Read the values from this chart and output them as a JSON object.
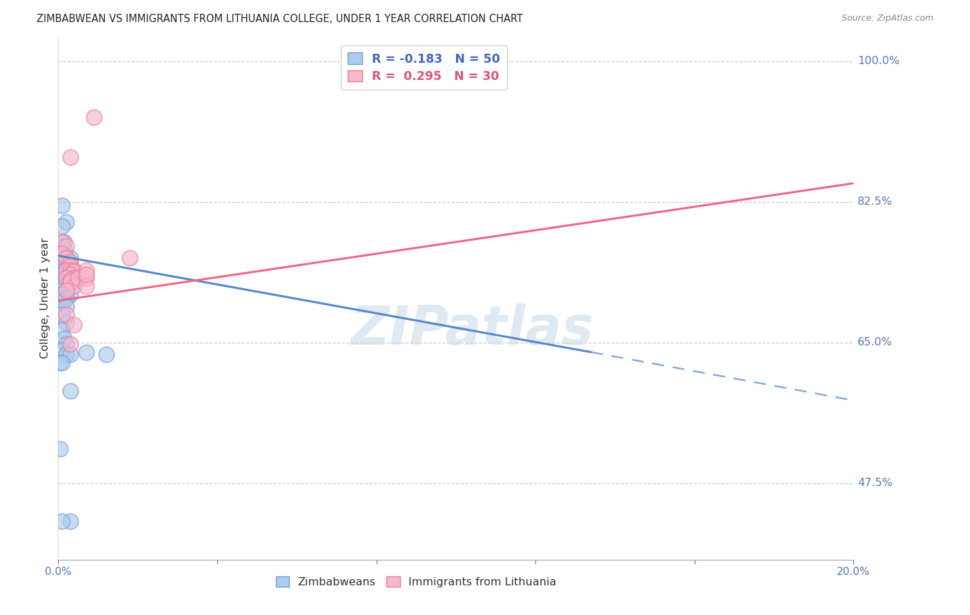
{
  "title": "ZIMBABWEAN VS IMMIGRANTS FROM LITHUANIA COLLEGE, UNDER 1 YEAR CORRELATION CHART",
  "source": "Source: ZipAtlas.com",
  "ylabel": "College, Under 1 year",
  "ytick_labels": [
    "100.0%",
    "82.5%",
    "65.0%",
    "47.5%"
  ],
  "ytick_values": [
    1.0,
    0.825,
    0.65,
    0.475
  ],
  "legend_entries": [
    {
      "label": "R = -0.183   N = 50",
      "color": "#7ab0e0"
    },
    {
      "label": "R =  0.295   N = 30",
      "color": "#f0a0b8"
    }
  ],
  "legend_label_zim": "Zimbabweans",
  "legend_label_lith": "Immigrants from Lithuania",
  "zim_color": "#aaccee",
  "zim_edge": "#7799cc",
  "lith_color": "#f5b8cc",
  "lith_edge": "#ee7799",
  "zim_scatter": [
    [
      0.001,
      0.82
    ],
    [
      0.002,
      0.8
    ],
    [
      0.001,
      0.795
    ],
    [
      0.0015,
      0.775
    ],
    [
      0.001,
      0.77
    ],
    [
      0.0015,
      0.765
    ],
    [
      0.001,
      0.76
    ],
    [
      0.002,
      0.755
    ],
    [
      0.003,
      0.755
    ],
    [
      0.002,
      0.75
    ],
    [
      0.001,
      0.745
    ],
    [
      0.0005,
      0.745
    ],
    [
      0.001,
      0.74
    ],
    [
      0.002,
      0.74
    ],
    [
      0.0015,
      0.74
    ],
    [
      0.003,
      0.74
    ],
    [
      0.0005,
      0.735
    ],
    [
      0.001,
      0.735
    ],
    [
      0.002,
      0.735
    ],
    [
      0.003,
      0.73
    ],
    [
      0.001,
      0.73
    ],
    [
      0.002,
      0.73
    ],
    [
      0.0025,
      0.728
    ],
    [
      0.003,
      0.725
    ],
    [
      0.0015,
      0.725
    ],
    [
      0.002,
      0.722
    ],
    [
      0.001,
      0.72
    ],
    [
      0.0015,
      0.718
    ],
    [
      0.002,
      0.715
    ],
    [
      0.003,
      0.71
    ],
    [
      0.001,
      0.71
    ],
    [
      0.002,
      0.705
    ],
    [
      0.001,
      0.7
    ],
    [
      0.002,
      0.695
    ],
    [
      0.001,
      0.685
    ],
    [
      0.002,
      0.675
    ],
    [
      0.001,
      0.665
    ],
    [
      0.0015,
      0.655
    ],
    [
      0.002,
      0.648
    ],
    [
      0.001,
      0.64
    ],
    [
      0.002,
      0.635
    ],
    [
      0.003,
      0.635
    ],
    [
      0.0005,
      0.625
    ],
    [
      0.001,
      0.625
    ],
    [
      0.012,
      0.635
    ],
    [
      0.007,
      0.638
    ],
    [
      0.0005,
      0.518
    ],
    [
      0.003,
      0.428
    ],
    [
      0.001,
      0.428
    ],
    [
      0.003,
      0.59
    ]
  ],
  "lith_scatter": [
    [
      0.001,
      0.775
    ],
    [
      0.002,
      0.77
    ],
    [
      0.001,
      0.76
    ],
    [
      0.002,
      0.755
    ],
    [
      0.003,
      0.75
    ],
    [
      0.003,
      0.88
    ],
    [
      0.003,
      0.745
    ],
    [
      0.002,
      0.74
    ],
    [
      0.003,
      0.74
    ],
    [
      0.004,
      0.74
    ],
    [
      0.004,
      0.738
    ],
    [
      0.003,
      0.735
    ],
    [
      0.004,
      0.73
    ],
    [
      0.004,
      0.73
    ],
    [
      0.002,
      0.73
    ],
    [
      0.003,
      0.728
    ],
    [
      0.005,
      0.728
    ],
    [
      0.003,
      0.725
    ],
    [
      0.004,
      0.72
    ],
    [
      0.002,
      0.715
    ],
    [
      0.002,
      0.685
    ],
    [
      0.003,
      0.648
    ],
    [
      0.005,
      0.73
    ],
    [
      0.007,
      0.73
    ],
    [
      0.009,
      0.93
    ],
    [
      0.007,
      0.74
    ],
    [
      0.018,
      0.755
    ],
    [
      0.007,
      0.72
    ],
    [
      0.007,
      0.735
    ],
    [
      0.004,
      0.672
    ]
  ],
  "zim_line_solid": {
    "x0": 0.0,
    "y0": 0.758,
    "x1": 0.134,
    "y1": 0.638
  },
  "zim_line_dash": {
    "x0": 0.134,
    "y0": 0.638,
    "x1": 0.2,
    "y1": 0.578
  },
  "lith_line": {
    "x0": 0.0,
    "y0": 0.702,
    "x1": 0.2,
    "y1": 0.848
  },
  "xmin": 0.0,
  "xmax": 0.2,
  "ymin": 0.38,
  "ymax": 1.03,
  "watermark": "ZIPatlas",
  "background_color": "#ffffff"
}
